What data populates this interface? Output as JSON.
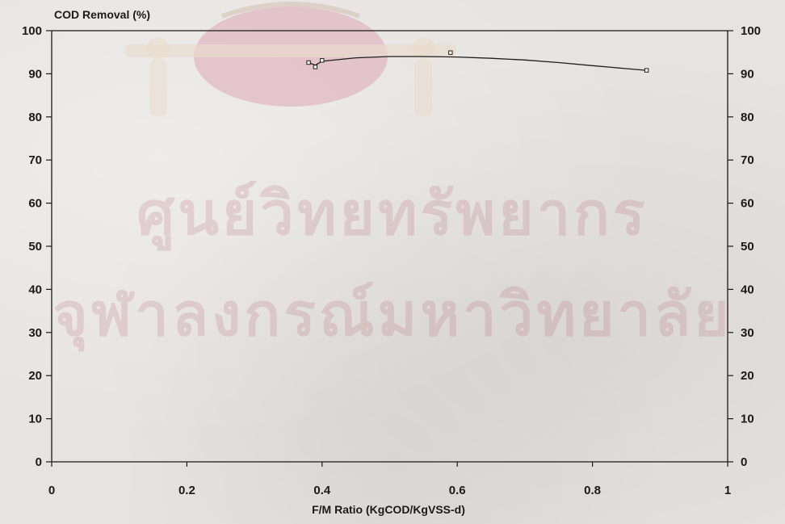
{
  "watermark": {
    "line1": "ศูนย์วิทยทรัพยากร",
    "line2": "จุฬาลงกรณ์มหาวิทยาลัย"
  },
  "chart_data": {
    "type": "line",
    "ylabel": "COD Removal (%)",
    "xlabel": "F/M Ratio (KgCOD/KgVSS-d)",
    "xlim": [
      0,
      1
    ],
    "ylim": [
      0,
      100
    ],
    "x_ticks": [
      0,
      0.2,
      0.4,
      0.6,
      0.8,
      1
    ],
    "x_tick_labels": [
      "0",
      "0.2",
      "0.4",
      "0.6",
      "0.8",
      "1"
    ],
    "y_ticks": [
      0,
      10,
      20,
      30,
      40,
      50,
      60,
      70,
      80,
      90,
      100
    ],
    "y_tick_labels": [
      "0",
      "10",
      "20",
      "30",
      "40",
      "50",
      "60",
      "70",
      "80",
      "90",
      "100"
    ],
    "right_axis_mirrored": true,
    "grid": false,
    "series": [
      {
        "points": [
          {
            "x": 0.38,
            "y": 92.6
          },
          {
            "x": 0.39,
            "y": 91.6
          },
          {
            "x": 0.4,
            "y": 93.1
          },
          {
            "x": 0.59,
            "y": 94.9
          },
          {
            "x": 0.88,
            "y": 90.8
          }
        ],
        "fit_curve": [
          {
            "x": 0.38,
            "y": 92.6
          },
          {
            "x": 0.39,
            "y": 92.0
          },
          {
            "x": 0.4,
            "y": 92.9
          },
          {
            "x": 0.45,
            "y": 93.7
          },
          {
            "x": 0.5,
            "y": 94.0
          },
          {
            "x": 0.55,
            "y": 94.0
          },
          {
            "x": 0.6,
            "y": 93.9
          },
          {
            "x": 0.65,
            "y": 93.6
          },
          {
            "x": 0.7,
            "y": 93.2
          },
          {
            "x": 0.75,
            "y": 92.6
          },
          {
            "x": 0.8,
            "y": 91.9
          },
          {
            "x": 0.85,
            "y": 91.2
          },
          {
            "x": 0.88,
            "y": 90.8
          }
        ]
      }
    ],
    "colors": {
      "line": "#1e1e1e",
      "marker_fill": "#ffffff",
      "axis": "#1a1a1a"
    }
  }
}
